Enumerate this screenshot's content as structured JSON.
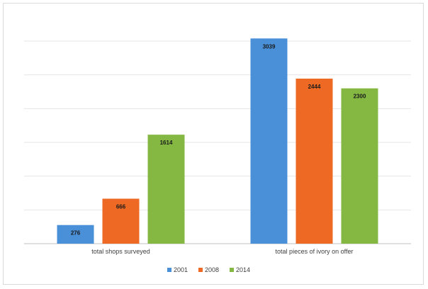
{
  "chart_data": {
    "type": "bar",
    "categories": [
      "total shops surveyed",
      "total pieces of ivory on offer"
    ],
    "series": [
      {
        "name": "2001",
        "color": "#4a90d9",
        "values": [
          276,
          3039
        ]
      },
      {
        "name": "2008",
        "color": "#ee6a24",
        "values": [
          666,
          2444
        ]
      },
      {
        "name": "2014",
        "color": "#84b843",
        "values": [
          1614,
          2300
        ]
      }
    ],
    "ylim": [
      0,
      3000
    ],
    "grid": true,
    "legend": "bottom"
  }
}
